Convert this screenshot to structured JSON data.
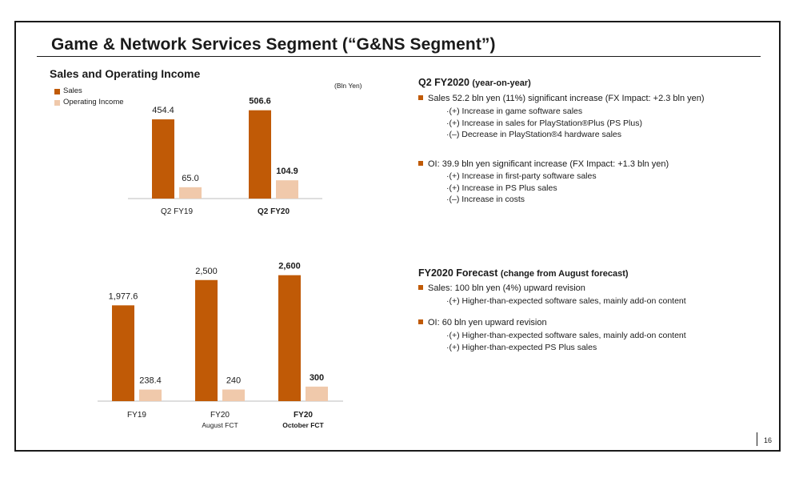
{
  "slide": {
    "title": "Game & Network Services Segment (“G&NS Segment”)",
    "page_number": "16"
  },
  "left": {
    "subtitle": "Sales and Operating Income",
    "unit": "(Bln Yen)",
    "legend": [
      {
        "label": "Sales",
        "color": "#c05a06"
      },
      {
        "label": "Operating Income",
        "color": "#f0c9ab"
      }
    ]
  },
  "chart_data": [
    {
      "type": "bar",
      "title": "Sales and Operating Income",
      "ylabel": "(Bln Yen)",
      "categories": [
        "Q2 FY19",
        "Q2 FY20"
      ],
      "category_bold": [
        false,
        true
      ],
      "series": [
        {
          "name": "Sales",
          "values": [
            454.4,
            506.6
          ],
          "labels": [
            "454.4",
            "506.6"
          ],
          "bold": [
            false,
            true
          ],
          "color": "#c05a06"
        },
        {
          "name": "Operating Income",
          "values": [
            65.0,
            104.9
          ],
          "labels": [
            "65.0",
            "104.9"
          ],
          "bold": [
            false,
            true
          ],
          "color": "#f0c9ab"
        }
      ]
    },
    {
      "type": "bar",
      "categories": [
        "FY19",
        "FY20",
        "FY20"
      ],
      "category_sub": [
        "",
        "August FCT",
        "October FCT"
      ],
      "category_bold": [
        false,
        false,
        true
      ],
      "series": [
        {
          "name": "Sales",
          "values": [
            1977.6,
            2500,
            2600
          ],
          "labels": [
            "1,977.6",
            "2,500",
            "2,600"
          ],
          "bold": [
            false,
            false,
            true
          ],
          "color": "#c05a06"
        },
        {
          "name": "Operating Income",
          "values": [
            238.4,
            240,
            300
          ],
          "labels": [
            "238.4",
            "240",
            "300"
          ],
          "bold": [
            false,
            false,
            true
          ],
          "color": "#f0c9ab"
        }
      ]
    }
  ],
  "q2": {
    "heading": "Q2 FY2020",
    "heading_paren": "(year-on-year)",
    "bullets": [
      {
        "text": "Sales 52.2 bln yen (11%) significant increase (FX Impact: +2.3 bln yen)",
        "subs": [
          "·(+) Increase in game software sales",
          "·(+) Increase in sales for PlayStation®Plus (PS Plus)",
          "·(–) Decrease in PlayStation®4 hardware sales"
        ]
      },
      {
        "text": "OI: 39.9 bln yen significant increase (FX Impact: +1.3 bln yen)",
        "subs": [
          "·(+) Increase in first-party software sales",
          "·(+) Increase in PS Plus sales",
          "·(–) Increase in costs"
        ]
      }
    ]
  },
  "forecast": {
    "heading": "FY2020 Forecast",
    "heading_paren": "(change from August forecast)",
    "bullets": [
      {
        "text": "Sales: 100 bln yen (4%) upward revision",
        "subs": [
          "·(+) Higher-than-expected software sales, mainly add-on content"
        ]
      },
      {
        "text": "OI: 60 bln yen upward revision",
        "subs": [
          "·(+) Higher-than-expected software sales, mainly add-on content",
          "·(+) Higher-than-expected PS Plus sales"
        ]
      }
    ]
  }
}
